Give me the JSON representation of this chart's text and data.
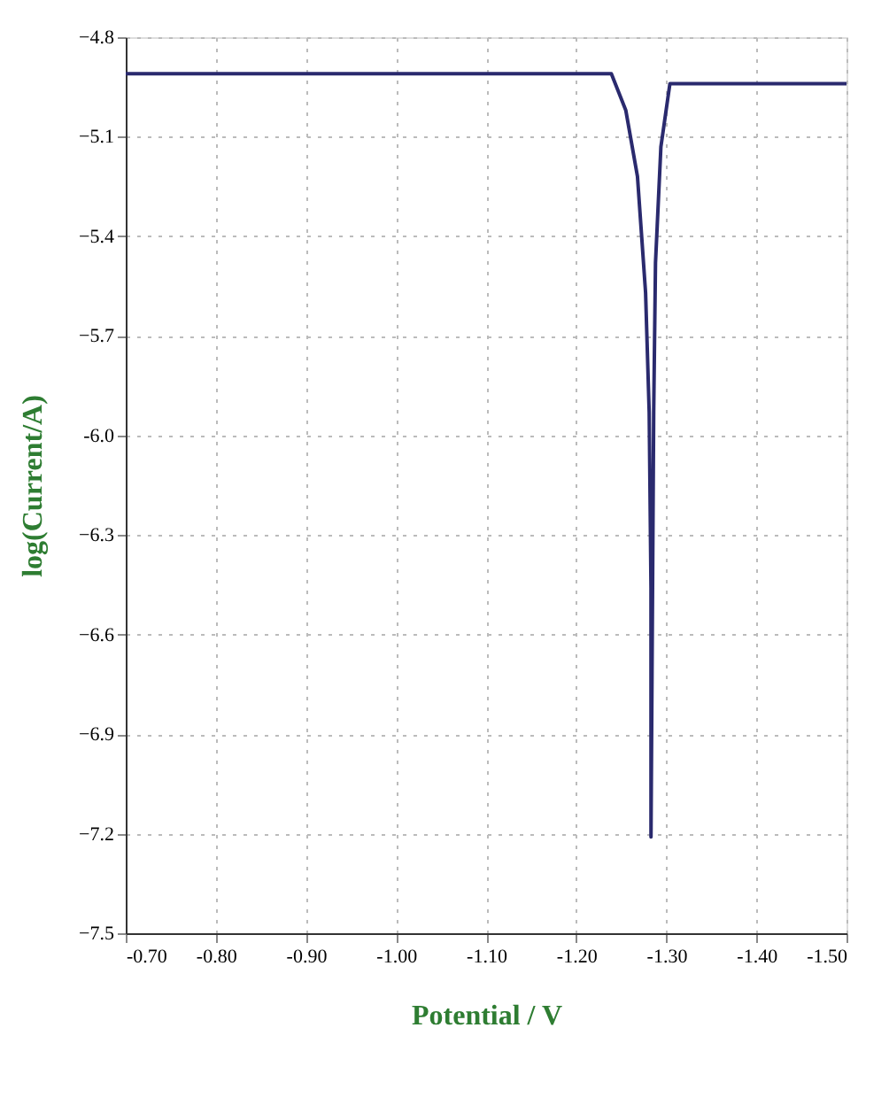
{
  "chart_data": {
    "type": "line",
    "xlabel": "Potential / V",
    "ylabel": "log(Current/A)",
    "xlim": [
      -0.7,
      -1.5
    ],
    "xticks": [
      {
        "value": -0.7,
        "label": "-0.70"
      },
      {
        "value": -0.8,
        "label": "-0.80"
      },
      {
        "value": -0.9,
        "label": "-0.90"
      },
      {
        "value": -1.0,
        "label": "-1.00"
      },
      {
        "value": -1.1,
        "label": "-1.10"
      },
      {
        "value": -1.2,
        "label": "-1.20"
      },
      {
        "value": -1.3,
        "label": "-1.30"
      },
      {
        "value": -1.4,
        "label": "-1.40"
      },
      {
        "value": -1.5,
        "label": "-1.50"
      }
    ],
    "ylim": [
      -7.5,
      -4.8
    ],
    "yticks": [
      -7.5,
      -7.2,
      -6.9,
      -6.6,
      -6.3,
      {
        "value": -6.0,
        "label": "-6.0"
      },
      -5.7,
      -5.4,
      -5.1,
      -4.8
    ],
    "grid": true,
    "legend": false,
    "marker": "none",
    "line_style": "solid",
    "series": [
      {
        "color": "#2a2a6e",
        "x": [
          -0.7,
          -1.239,
          -1.255,
          -1.268,
          -1.277,
          -1.281,
          -1.283,
          -1.283,
          -1.286,
          -1.288,
          -1.294,
          -1.304,
          -1.5
        ],
        "values": [
          -4.91,
          -4.91,
          -5.02,
          -5.22,
          -5.57,
          -5.93,
          -6.46,
          -7.21,
          -5.93,
          -5.48,
          -5.13,
          -4.94,
          -4.94
        ]
      }
    ]
  }
}
